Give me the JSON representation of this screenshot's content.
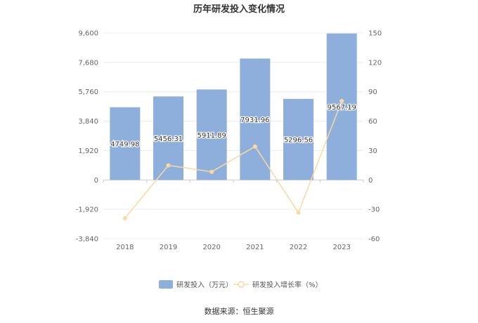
{
  "chart_data": {
    "type": "bar",
    "title": "历年研发投入变化情况",
    "categories": [
      "2018",
      "2019",
      "2020",
      "2021",
      "2022",
      "2023"
    ],
    "series": [
      {
        "name": "研发投入（万元）",
        "type": "bar",
        "axis": "left",
        "values": [
          4749.98,
          5456.31,
          5911.89,
          7931.96,
          5296.56,
          9567.19
        ],
        "labels": [
          "4749.98",
          "5456.31",
          "5911.89",
          "7931.96",
          "5296.56",
          "9567.19"
        ],
        "color": "#8eaedb"
      },
      {
        "name": "研发投入增长率（%）",
        "type": "line",
        "axis": "right",
        "values": [
          -39,
          14.9,
          8.3,
          34.2,
          -33.2,
          80.6
        ],
        "color": "#f9d9a0"
      }
    ],
    "y_left": {
      "min": -3840,
      "max": 9600,
      "ticks": [
        -3840,
        -1920,
        0,
        1920,
        3840,
        5760,
        7680,
        9600
      ],
      "tick_labels": [
        "-3,840",
        "-1,920",
        "0",
        "1,920",
        "3,840",
        "5,760",
        "7,680",
        "9,600"
      ]
    },
    "y_right": {
      "min": -60,
      "max": 150,
      "ticks": [
        -60,
        -30,
        0,
        30,
        60,
        90,
        120,
        150
      ],
      "tick_labels": [
        "-60",
        "-30",
        "0",
        "30",
        "60",
        "90",
        "120",
        "150"
      ]
    },
    "grid": true,
    "legend_position": "bottom"
  },
  "source_text": "数据来源：恒生聚源"
}
